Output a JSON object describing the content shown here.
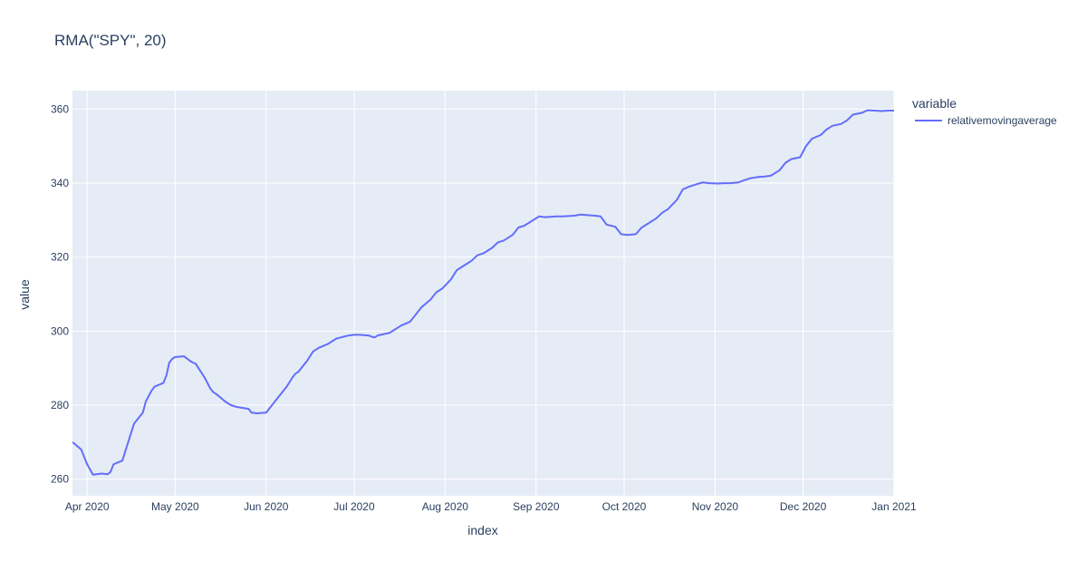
{
  "chart_data": {
    "type": "line",
    "title": "RMA(\"SPY\", 20)",
    "xlabel": "index",
    "ylabel": "value",
    "legend_title": "variable",
    "legend_placement": "right",
    "grid": true,
    "xlim": [
      "2020-03-27",
      "2021-01-01"
    ],
    "ylim": [
      255.5,
      365
    ],
    "x_ticks": [
      {
        "value": "2020-04-01",
        "label": "Apr 2020"
      },
      {
        "value": "2020-05-01",
        "label": "May 2020"
      },
      {
        "value": "2020-06-01",
        "label": "Jun 2020"
      },
      {
        "value": "2020-07-01",
        "label": "Jul 2020"
      },
      {
        "value": "2020-08-01",
        "label": "Aug 2020"
      },
      {
        "value": "2020-09-01",
        "label": "Sep 2020"
      },
      {
        "value": "2020-10-01",
        "label": "Oct 2020"
      },
      {
        "value": "2020-11-01",
        "label": "Nov 2020"
      },
      {
        "value": "2020-12-01",
        "label": "Dec 2020"
      },
      {
        "value": "2021-01-01",
        "label": "Jan 2021"
      }
    ],
    "y_ticks": [
      {
        "value": 260,
        "label": "260"
      },
      {
        "value": 280,
        "label": "280"
      },
      {
        "value": 300,
        "label": "300"
      },
      {
        "value": 320,
        "label": "320"
      },
      {
        "value": 340,
        "label": "340"
      },
      {
        "value": 360,
        "label": "360"
      }
    ],
    "colors": {
      "plot_bg": "#e5ecf6",
      "grid": "#ffffff",
      "text": "#2a3f5f",
      "series": "#636efa"
    },
    "series": [
      {
        "name": "relativemovingaverage",
        "x": [
          "2020-03-27",
          "2020-03-30",
          "2020-04-01",
          "2020-04-03",
          "2020-04-06",
          "2020-04-08",
          "2020-04-09",
          "2020-04-10",
          "2020-04-13",
          "2020-04-15",
          "2020-04-17",
          "2020-04-20",
          "2020-04-21",
          "2020-04-23",
          "2020-04-24",
          "2020-04-27",
          "2020-04-28",
          "2020-04-29",
          "2020-04-30",
          "2020-05-01",
          "2020-05-04",
          "2020-05-06",
          "2020-05-07",
          "2020-05-08",
          "2020-05-11",
          "2020-05-13",
          "2020-05-14",
          "2020-05-15",
          "2020-05-18",
          "2020-05-20",
          "2020-05-22",
          "2020-05-26",
          "2020-05-27",
          "2020-05-29",
          "2020-06-01",
          "2020-06-03",
          "2020-06-04",
          "2020-06-05",
          "2020-06-08",
          "2020-06-10",
          "2020-06-11",
          "2020-06-12",
          "2020-06-15",
          "2020-06-17",
          "2020-06-19",
          "2020-06-22",
          "2020-06-24",
          "2020-06-25",
          "2020-06-26",
          "2020-06-29",
          "2020-07-01",
          "2020-07-03",
          "2020-07-06",
          "2020-07-07",
          "2020-07-08",
          "2020-07-09",
          "2020-07-10",
          "2020-07-13",
          "2020-07-15",
          "2020-07-17",
          "2020-07-20",
          "2020-07-22",
          "2020-07-24",
          "2020-07-27",
          "2020-07-29",
          "2020-07-31",
          "2020-08-03",
          "2020-08-05",
          "2020-08-07",
          "2020-08-10",
          "2020-08-12",
          "2020-08-14",
          "2020-08-17",
          "2020-08-19",
          "2020-08-21",
          "2020-08-24",
          "2020-08-26",
          "2020-08-28",
          "2020-08-31",
          "2020-09-02",
          "2020-09-04",
          "2020-09-08",
          "2020-09-10",
          "2020-09-14",
          "2020-09-16",
          "2020-09-18",
          "2020-09-21",
          "2020-09-23",
          "2020-09-25",
          "2020-09-28",
          "2020-09-30",
          "2020-10-02",
          "2020-10-05",
          "2020-10-07",
          "2020-10-09",
          "2020-10-12",
          "2020-10-14",
          "2020-10-16",
          "2020-10-19",
          "2020-10-21",
          "2020-10-23",
          "2020-10-26",
          "2020-10-28",
          "2020-10-30",
          "2020-11-02",
          "2020-11-04",
          "2020-11-06",
          "2020-11-09",
          "2020-11-11",
          "2020-11-13",
          "2020-11-16",
          "2020-11-18",
          "2020-11-20",
          "2020-11-23",
          "2020-11-25",
          "2020-11-27",
          "2020-11-30",
          "2020-12-02",
          "2020-12-04",
          "2020-12-07",
          "2020-12-09",
          "2020-12-11",
          "2020-12-14",
          "2020-12-16",
          "2020-12-18",
          "2020-12-21",
          "2020-12-23",
          "2020-12-28",
          "2020-12-30",
          "2021-01-01"
        ],
        "y": [
          270.0,
          268.0,
          264.0,
          261.2,
          261.5,
          261.3,
          262.0,
          264.0,
          265.0,
          270.0,
          275.0,
          278.0,
          281.0,
          284.0,
          285.0,
          286.0,
          288.0,
          291.5,
          292.5,
          293.0,
          293.2,
          292.0,
          291.5,
          291.2,
          287.5,
          284.5,
          283.5,
          283.0,
          281.0,
          280.0,
          279.5,
          279.0,
          278.0,
          277.8,
          278.0,
          280.0,
          281.0,
          282.0,
          285.0,
          287.5,
          288.5,
          289.0,
          292.0,
          294.5,
          295.5,
          296.5,
          297.5,
          298.0,
          298.2,
          298.8,
          299.0,
          299.0,
          298.8,
          298.5,
          298.3,
          298.8,
          299.0,
          299.5,
          300.5,
          301.5,
          302.5,
          304.5,
          306.5,
          308.5,
          310.5,
          311.5,
          314.0,
          316.5,
          317.5,
          319.0,
          320.5,
          321.0,
          322.5,
          324.0,
          324.5,
          326.0,
          328.0,
          328.5,
          330.0,
          331.0,
          330.8,
          331.0,
          331.0,
          331.2,
          331.5,
          331.4,
          331.2,
          331.0,
          328.8,
          328.2,
          326.2,
          326.0,
          326.2,
          328.0,
          329.0,
          330.5,
          332.0,
          333.0,
          335.5,
          338.3,
          339.0,
          339.8,
          340.2,
          340.0,
          339.9,
          340.0,
          340.0,
          340.2,
          340.8,
          341.3,
          341.7,
          341.8,
          342.0,
          343.5,
          345.5,
          346.5,
          347.0,
          350.0,
          352.0,
          353.0,
          354.5,
          355.5,
          356.0,
          357.0,
          358.5,
          359.0,
          359.7,
          359.5,
          359.6,
          359.6
        ]
      }
    ]
  }
}
